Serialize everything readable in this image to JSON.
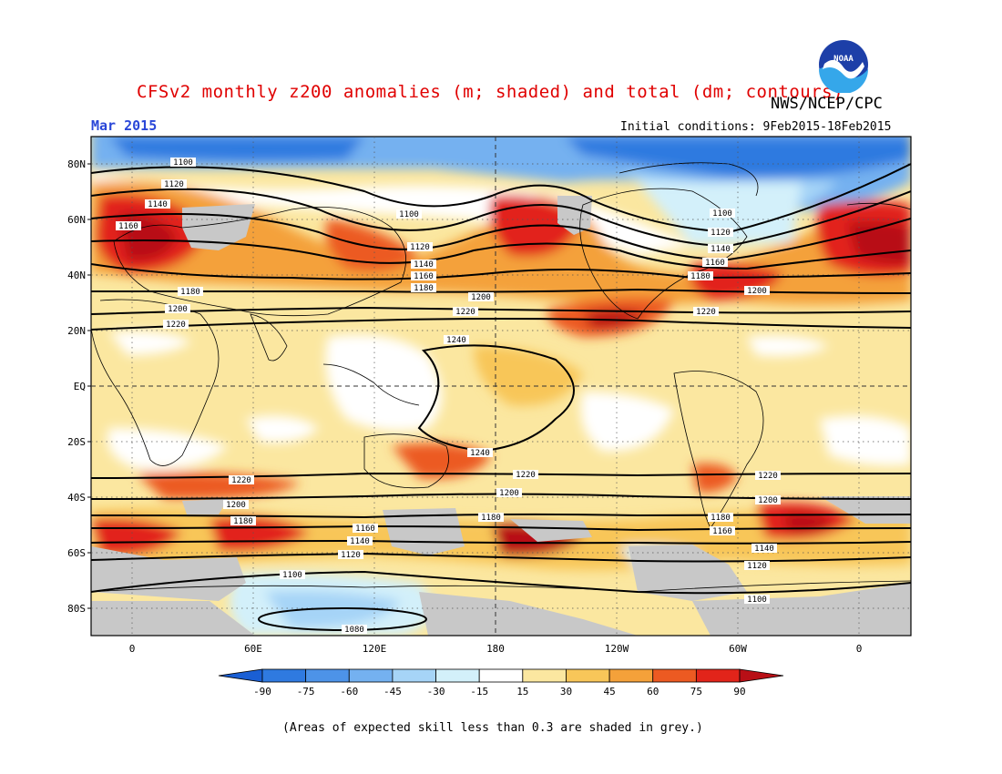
{
  "title": "CFSv2 monthly z200 anomalies (m; shaded) and total (dm; contours)",
  "agency": "NWS/NCEP/CPC",
  "month": "Mar 2015",
  "initial_conditions": "Initial conditions: 9Feb2015-18Feb2015",
  "footnote": "(Areas of expected skill less than 0.3 are shaded in grey.)",
  "logo_text": "NOAA",
  "lat_labels": [
    "80N",
    "60N",
    "40N",
    "20N",
    "EQ",
    "20S",
    "40S",
    "60S",
    "80S"
  ],
  "lon_labels": [
    "0",
    "60E",
    "120E",
    "180",
    "120W",
    "60W",
    "0"
  ],
  "colorbar": {
    "labels": [
      "-90",
      "-75",
      "-60",
      "-45",
      "-30",
      "-15",
      "15",
      "30",
      "45",
      "60",
      "75",
      "90"
    ],
    "colors": [
      "#1a5fd4",
      "#2f7ae0",
      "#4d93e8",
      "#74b1f0",
      "#a6d4f7",
      "#d3f0fa",
      "#ffffff",
      "#fbe7a0",
      "#f8c659",
      "#f4a13a",
      "#ec5a22",
      "#e2241a",
      "#b80f16"
    ]
  },
  "contour_labels": [
    "1080",
    "1100",
    "1120",
    "1140",
    "1160",
    "1180",
    "1200",
    "1220",
    "1240"
  ],
  "grey_color": "#c8c8c8"
}
